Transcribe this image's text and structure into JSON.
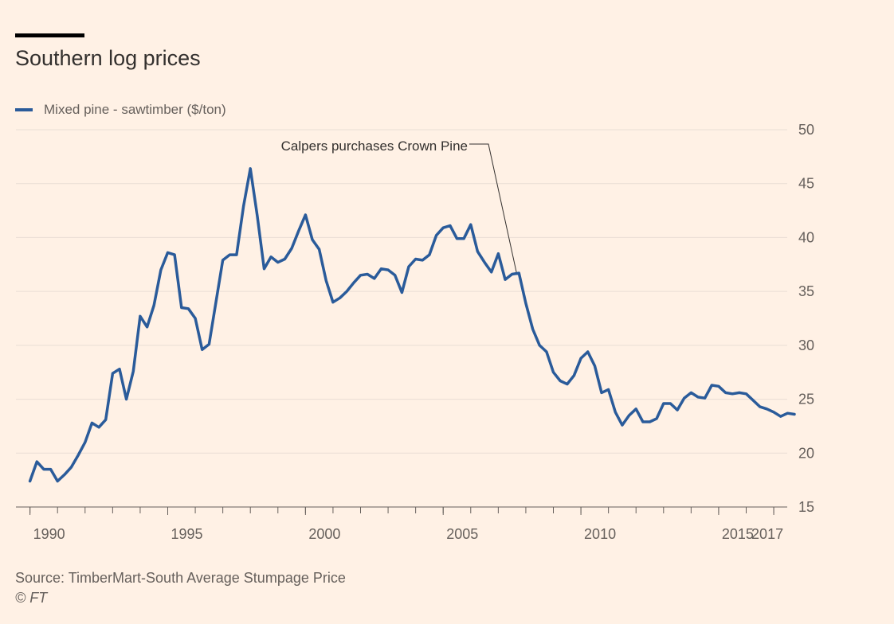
{
  "header": {
    "title": "Southern log prices"
  },
  "footer": {
    "source": "Source: TimberMart-South Average Stumpage Price",
    "copyright": "© FT"
  },
  "colors": {
    "background": "#fff1e5",
    "series": "#2a5b9a",
    "grid": "#e9ded5",
    "text": "#33302e",
    "muted": "#66605c"
  },
  "chart_data": {
    "type": "line",
    "title": "Southern log prices",
    "xlabel": "",
    "ylabel": "",
    "xlim": [
      1989.75,
      2017.75
    ],
    "ylim": [
      15,
      50
    ],
    "y_ticks": [
      15,
      20,
      25,
      30,
      35,
      40,
      45,
      50
    ],
    "y_axis_position": "right",
    "x_ticks": [
      {
        "value": 1990,
        "label": "1990"
      },
      {
        "value": 1995,
        "label": "1995"
      },
      {
        "value": 2000,
        "label": "2000"
      },
      {
        "value": 2005,
        "label": "2005"
      },
      {
        "value": 2010,
        "label": "2010"
      },
      {
        "value": 2015,
        "label": "2015"
      },
      {
        "value": 2017,
        "label": "2017"
      }
    ],
    "grid": true,
    "legend_position": "top-left",
    "annotation": {
      "text": "Calpers purchases Crown Pine",
      "x": 2007.75,
      "y": 36.5
    },
    "series": [
      {
        "name": "Mixed pine - sawtimber ($/ton)",
        "color": "#2a5b9a",
        "points": [
          [
            1990.0,
            17.4
          ],
          [
            1990.25,
            19.2
          ],
          [
            1990.5,
            18.5
          ],
          [
            1990.75,
            18.5
          ],
          [
            1991.0,
            17.4
          ],
          [
            1991.25,
            18.0
          ],
          [
            1991.5,
            18.7
          ],
          [
            1991.75,
            19.8
          ],
          [
            1992.0,
            21.0
          ],
          [
            1992.25,
            22.8
          ],
          [
            1992.5,
            22.4
          ],
          [
            1992.75,
            23.1
          ],
          [
            1993.0,
            27.4
          ],
          [
            1993.25,
            27.8
          ],
          [
            1993.5,
            25.0
          ],
          [
            1993.75,
            27.6
          ],
          [
            1994.0,
            32.7
          ],
          [
            1994.25,
            31.7
          ],
          [
            1994.5,
            33.7
          ],
          [
            1994.75,
            37.0
          ],
          [
            1995.0,
            38.6
          ],
          [
            1995.25,
            38.4
          ],
          [
            1995.5,
            33.5
          ],
          [
            1995.75,
            33.4
          ],
          [
            1996.0,
            32.5
          ],
          [
            1996.25,
            29.6
          ],
          [
            1996.5,
            30.1
          ],
          [
            1996.75,
            34.0
          ],
          [
            1997.0,
            37.9
          ],
          [
            1997.25,
            38.4
          ],
          [
            1997.5,
            38.4
          ],
          [
            1997.75,
            42.9
          ],
          [
            1998.0,
            46.4
          ],
          [
            1998.25,
            42.0
          ],
          [
            1998.5,
            37.1
          ],
          [
            1998.75,
            38.2
          ],
          [
            1999.0,
            37.7
          ],
          [
            1999.25,
            38.0
          ],
          [
            1999.5,
            39.0
          ],
          [
            1999.75,
            40.6
          ],
          [
            2000.0,
            42.1
          ],
          [
            2000.25,
            39.8
          ],
          [
            2000.5,
            38.9
          ],
          [
            2000.75,
            36.0
          ],
          [
            2001.0,
            34.0
          ],
          [
            2001.25,
            34.4
          ],
          [
            2001.5,
            35.0
          ],
          [
            2001.75,
            35.8
          ],
          [
            2002.0,
            36.5
          ],
          [
            2002.25,
            36.6
          ],
          [
            2002.5,
            36.2
          ],
          [
            2002.75,
            37.1
          ],
          [
            2003.0,
            37.0
          ],
          [
            2003.25,
            36.5
          ],
          [
            2003.5,
            34.9
          ],
          [
            2003.75,
            37.3
          ],
          [
            2004.0,
            38.0
          ],
          [
            2004.25,
            37.9
          ],
          [
            2004.5,
            38.4
          ],
          [
            2004.75,
            40.2
          ],
          [
            2005.0,
            40.9
          ],
          [
            2005.25,
            41.1
          ],
          [
            2005.5,
            39.9
          ],
          [
            2005.75,
            39.9
          ],
          [
            2006.0,
            41.2
          ],
          [
            2006.25,
            38.7
          ],
          [
            2006.5,
            37.7
          ],
          [
            2006.75,
            36.8
          ],
          [
            2007.0,
            38.5
          ],
          [
            2007.25,
            36.1
          ],
          [
            2007.5,
            36.6
          ],
          [
            2007.75,
            36.7
          ],
          [
            2008.0,
            33.9
          ],
          [
            2008.25,
            31.5
          ],
          [
            2008.5,
            30.0
          ],
          [
            2008.75,
            29.4
          ],
          [
            2009.0,
            27.5
          ],
          [
            2009.25,
            26.7
          ],
          [
            2009.5,
            26.4
          ],
          [
            2009.75,
            27.2
          ],
          [
            2010.0,
            28.8
          ],
          [
            2010.25,
            29.4
          ],
          [
            2010.5,
            28.1
          ],
          [
            2010.75,
            25.6
          ],
          [
            2011.0,
            25.9
          ],
          [
            2011.25,
            23.8
          ],
          [
            2011.5,
            22.6
          ],
          [
            2011.75,
            23.5
          ],
          [
            2012.0,
            24.1
          ],
          [
            2012.25,
            22.9
          ],
          [
            2012.5,
            22.9
          ],
          [
            2012.75,
            23.2
          ],
          [
            2013.0,
            24.6
          ],
          [
            2013.25,
            24.6
          ],
          [
            2013.5,
            24.0
          ],
          [
            2013.75,
            25.1
          ],
          [
            2014.0,
            25.6
          ],
          [
            2014.25,
            25.2
          ],
          [
            2014.5,
            25.1
          ],
          [
            2014.75,
            26.3
          ],
          [
            2015.0,
            26.2
          ],
          [
            2015.25,
            25.6
          ],
          [
            2015.5,
            25.5
          ],
          [
            2015.75,
            25.6
          ],
          [
            2016.0,
            25.5
          ],
          [
            2016.25,
            24.9
          ],
          [
            2016.5,
            24.3
          ],
          [
            2016.75,
            24.1
          ],
          [
            2017.0,
            23.8
          ],
          [
            2017.25,
            23.4
          ],
          [
            2017.5,
            23.7
          ],
          [
            2017.75,
            23.6
          ]
        ]
      }
    ]
  }
}
